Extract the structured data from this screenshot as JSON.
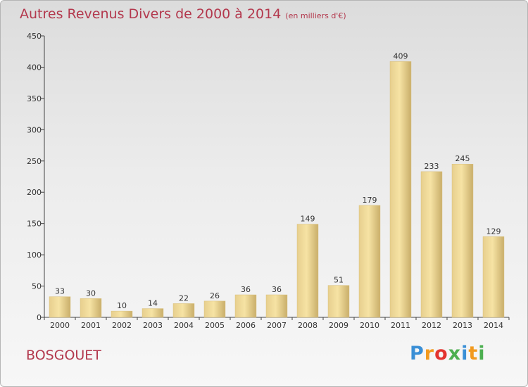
{
  "header": {
    "title": "Autres Revenus Divers de 2000 à 2014",
    "unit_note": "(en milliers d'€)"
  },
  "footer": {
    "place": "BOSGOUET",
    "logo_text": "Proxiti",
    "logo_colors": [
      "#3a8fd6",
      "#f29a1f",
      "#e3342f",
      "#4caf50",
      "#3a8fd6",
      "#f29a1f",
      "#4caf50"
    ]
  },
  "colors": {
    "title": "#b3384d",
    "bar_light": "#f6e3a4",
    "bar_dark": "#c9ae6a",
    "axis": "#444444",
    "grid": "#c8c8c8"
  },
  "chart_data": {
    "type": "bar",
    "title": "Autres Revenus Divers de 2000 à 2014",
    "subtitle": "(en milliers d'€)",
    "xlabel": "",
    "ylabel": "",
    "categories": [
      "2000",
      "2001",
      "2002",
      "2003",
      "2004",
      "2005",
      "2006",
      "2007",
      "2008",
      "2009",
      "2010",
      "2011",
      "2012",
      "2013",
      "2014"
    ],
    "values": [
      33,
      30,
      10,
      14,
      22,
      26,
      36,
      36,
      149,
      51,
      179,
      409,
      233,
      245,
      129
    ],
    "ylim": [
      0,
      450
    ],
    "yticks": [
      0,
      50,
      100,
      150,
      200,
      250,
      300,
      350,
      400,
      450
    ],
    "grid": false,
    "legend": "none"
  }
}
